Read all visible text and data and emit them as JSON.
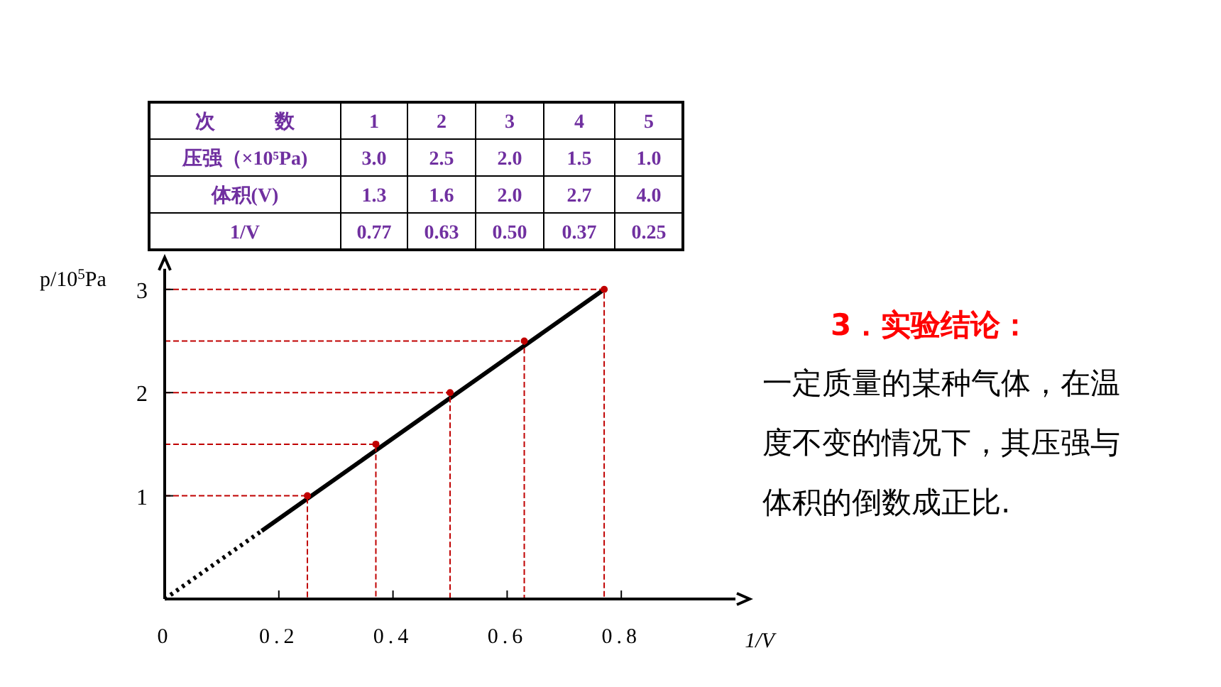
{
  "chart_data": {
    "type": "line",
    "xlabel": "1/V",
    "ylabel": "p/10$^{5}$Pa",
    "xlim": [
      0,
      1.0
    ],
    "ylim": [
      0,
      3.2
    ],
    "xticks": [
      0,
      0.2,
      0.4,
      0.6,
      0.8
    ],
    "yticks": [
      1,
      2,
      3
    ],
    "grid": false,
    "series": [
      {
        "type": "line",
        "line_style": "dotted",
        "color": "#000000",
        "x": [
          0,
          0.17
        ],
        "values": [
          0,
          0.66
        ]
      },
      {
        "type": "line",
        "line_style": "solid",
        "color": "#000000",
        "x": [
          0.17,
          0.77
        ],
        "values": [
          0.66,
          3.0
        ]
      },
      {
        "type": "line",
        "line_style": "dashed",
        "color": "#c00000",
        "x": [
          0,
          0.25,
          0.25
        ],
        "values": [
          1.0,
          1.0,
          0
        ]
      },
      {
        "type": "line",
        "line_style": "dashed",
        "color": "#c00000",
        "x": [
          0,
          0.37,
          0.37
        ],
        "values": [
          1.5,
          1.5,
          0
        ]
      },
      {
        "type": "line",
        "line_style": "dashed",
        "color": "#c00000",
        "x": [
          0,
          0.5,
          0.5
        ],
        "values": [
          2.0,
          2.0,
          0
        ]
      },
      {
        "type": "line",
        "line_style": "dashed",
        "color": "#c00000",
        "x": [
          0,
          0.63,
          0.63
        ],
        "values": [
          2.5,
          2.5,
          0
        ]
      },
      {
        "type": "line",
        "line_style": "dashed",
        "color": "#c00000",
        "x": [
          0,
          0.77,
          0.77
        ],
        "values": [
          3.0,
          3.0,
          0
        ]
      },
      {
        "type": "scatter",
        "marker": "circle",
        "color": "#c00000",
        "x": [
          0.25,
          0.37,
          0.5,
          0.63,
          0.77
        ],
        "values": [
          1.0,
          1.5,
          2.0,
          2.5,
          3.0
        ]
      }
    ],
    "annotations": [
      "次　　　数",
      "1",
      "2",
      "3",
      "4",
      "5",
      "压强（×10⁵Pa)",
      "3.0",
      "2.5",
      "2.0",
      "1.5",
      "1.0",
      "体积(V)",
      "1.3",
      "1.6",
      "2.0",
      "2.7",
      "4.0",
      "1/V",
      "0.77",
      "0.63",
      "0.50",
      "0.37",
      "0.25",
      "3．实验结论：",
      "一定质量的某种气体，在温度不变的情况下，其压强与体积的倒数成正比."
    ]
  }
}
